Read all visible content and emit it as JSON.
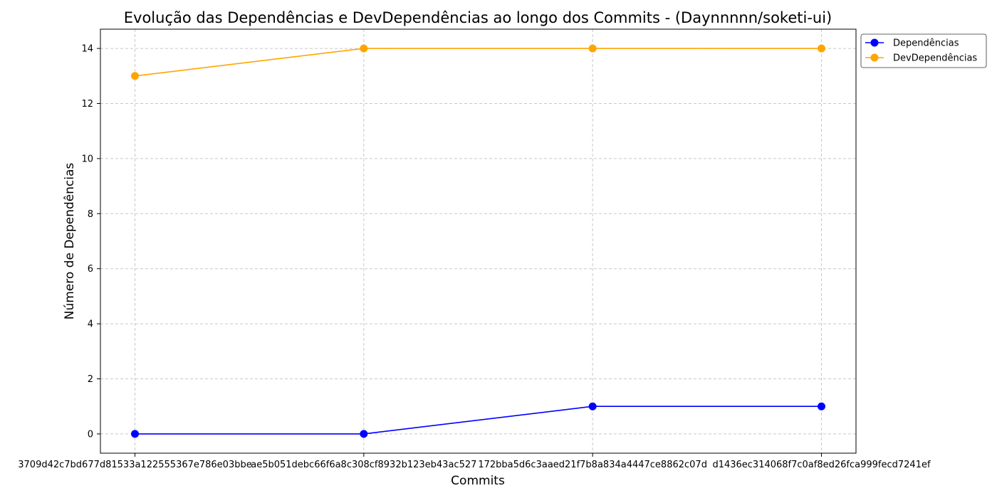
{
  "chart_data": {
    "type": "line",
    "title": "Evolução das Dependências e DevDependências ao longo dos Commits - (Daynnnnn/soketi-ui)",
    "xlabel": "Commits",
    "ylabel": "Número de Dependências",
    "categories": [
      "3709d42c7bd677d81533a122555367e786e03bbe",
      "ae5b051debc66f6a8c308cf8932b123eb43ac527",
      "172bba5d6c3aaed21f7b8a834a4447ce8862c07d",
      "d1436ec314068f7c0af8ed26fca999fecd7241ef"
    ],
    "series": [
      {
        "name": "Dependências",
        "values": [
          0,
          0,
          1,
          1
        ],
        "color": "#0000ff"
      },
      {
        "name": "DevDependências",
        "values": [
          13,
          14,
          14,
          14
        ],
        "color": "#ffa500"
      }
    ],
    "yticks": [
      0,
      2,
      4,
      6,
      8,
      10,
      12,
      14
    ],
    "ylim": [
      -0.7,
      14.7
    ],
    "grid": true,
    "grid_style": "dashed",
    "legend_position": "outside-top-right",
    "marker": "circle"
  }
}
